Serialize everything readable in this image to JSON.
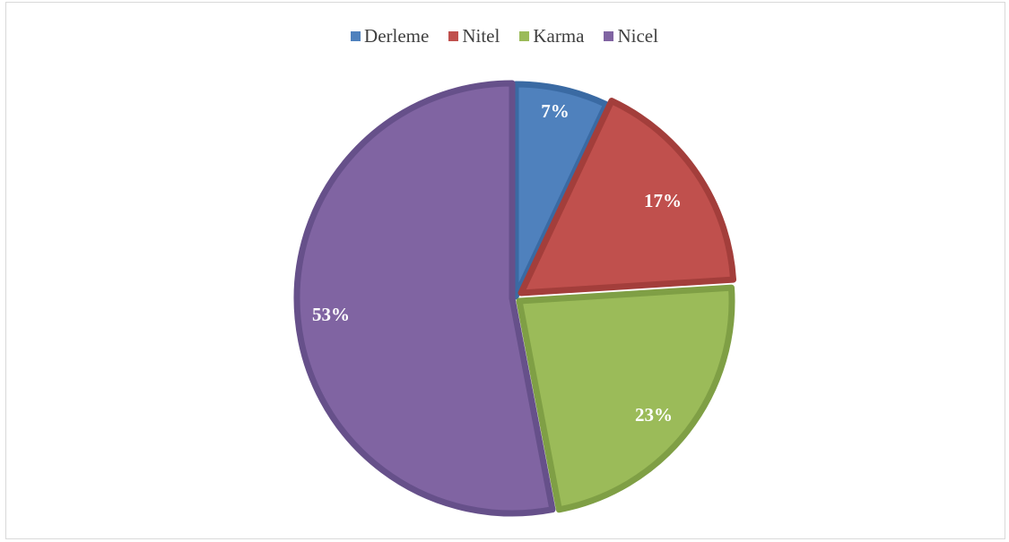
{
  "chart_data": {
    "type": "pie",
    "title": "",
    "categories": [
      "Derleme",
      "Nitel",
      "Karma",
      "Nicel"
    ],
    "values": [
      7,
      17,
      23,
      53
    ],
    "labels": [
      "7%",
      "17%",
      "23%",
      "53%"
    ],
    "colors": [
      "#4f81bd",
      "#c0504d",
      "#9bbb59",
      "#8064a2"
    ],
    "edge_colors": [
      "#3a6aa3",
      "#a33e3b",
      "#7f9f45",
      "#66508a"
    ],
    "legend_position": "top"
  }
}
